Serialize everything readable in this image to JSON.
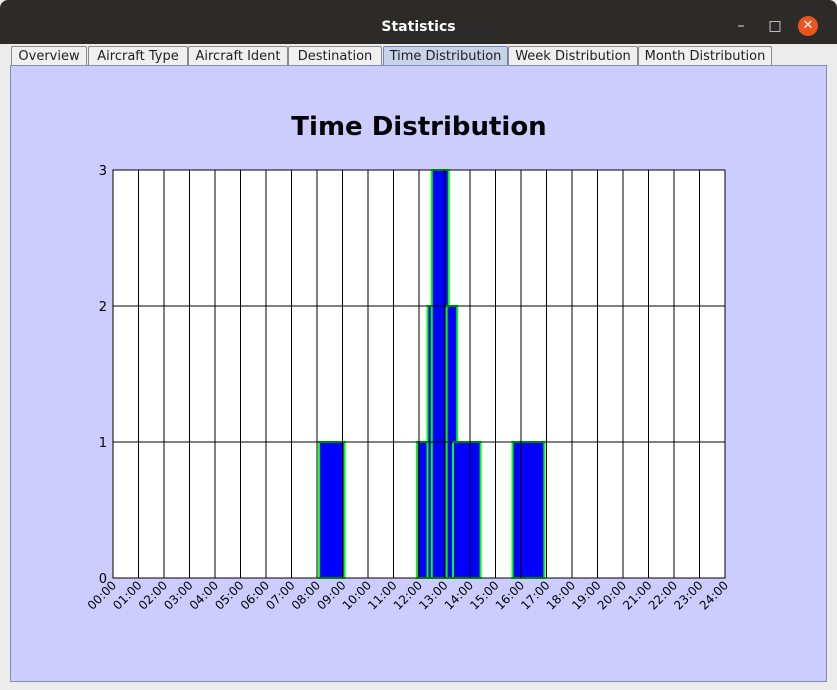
{
  "window": {
    "title": "Statistics"
  },
  "controls": {
    "minimize": "–",
    "maximize": "□",
    "close": "✕"
  },
  "tabs": [
    {
      "label": "Overview",
      "selected": false
    },
    {
      "label": "Aircraft Type",
      "selected": false
    },
    {
      "label": "Aircraft Ident",
      "selected": false
    },
    {
      "label": "Destination",
      "selected": false
    },
    {
      "label": "Time Distribution",
      "selected": true
    },
    {
      "label": "Week Distribution",
      "selected": false
    },
    {
      "label": "Month Distribution",
      "selected": false
    }
  ],
  "colors": {
    "panel_bg": "#ccccff",
    "plot_bg": "#ffffff",
    "bar_fill": "#0000ff",
    "bar_edge": "#00ff00",
    "grid": "#000000"
  },
  "chart_data": {
    "type": "bar",
    "title": "Time Distribution",
    "xlabel": "",
    "ylabel": "",
    "ylim": [
      0,
      3
    ],
    "xlim": [
      0,
      24
    ],
    "grid": true,
    "y_ticks": [
      "0",
      "1",
      "2",
      "3"
    ],
    "x_ticks": [
      "00:00",
      "01:00",
      "02:00",
      "03:00",
      "04:00",
      "05:00",
      "06:00",
      "07:00",
      "08:00",
      "09:00",
      "10:00",
      "11:00",
      "12:00",
      "13:00",
      "14:00",
      "15:00",
      "16:00",
      "17:00",
      "18:00",
      "19:00",
      "20:00",
      "21:00",
      "22:00",
      "23:00",
      "24:00"
    ],
    "bars": [
      {
        "start": "08:05",
        "end": "09:05",
        "value": 1
      },
      {
        "start": "11:55",
        "end": "12:25",
        "value": 1
      },
      {
        "start": "12:20",
        "end": "12:35",
        "value": 2
      },
      {
        "start": "12:30",
        "end": "13:10",
        "value": 3
      },
      {
        "start": "13:05",
        "end": "13:30",
        "value": 2
      },
      {
        "start": "13:20",
        "end": "14:25",
        "value": 1
      },
      {
        "start": "15:40",
        "end": "16:55",
        "value": 1
      }
    ]
  }
}
